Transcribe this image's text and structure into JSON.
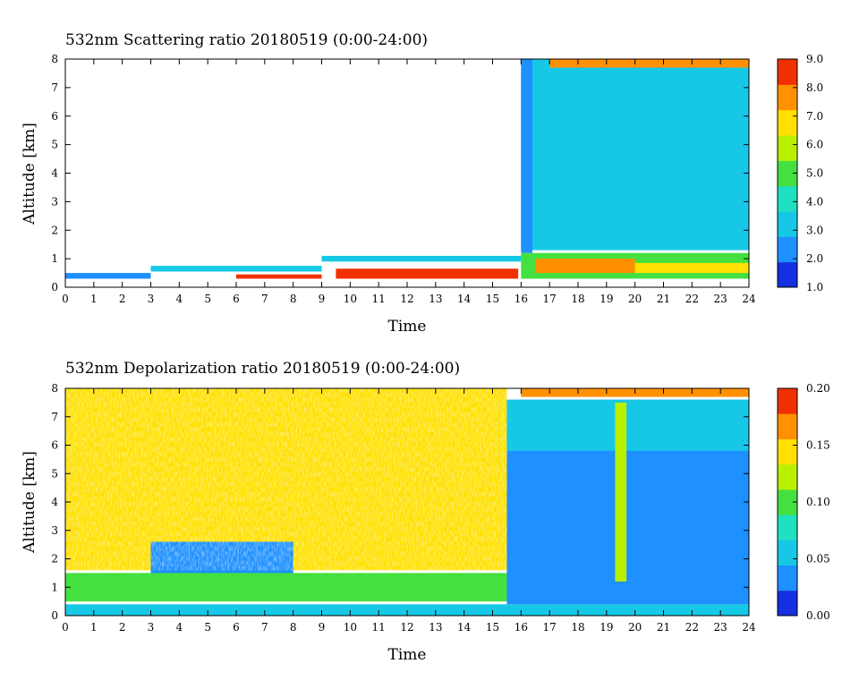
{
  "chart_data": [
    {
      "type": "heatmap",
      "title": "532nm Scattering ratio  20180519 (0:00-24:00)",
      "xlabel": "Time",
      "ylabel": "Altitude [km]",
      "xlim": [
        0,
        24
      ],
      "ylim": [
        0,
        8
      ],
      "xticks": [
        "0",
        "1",
        "2",
        "3",
        "4",
        "5",
        "6",
        "7",
        "8",
        "9",
        "10",
        "11",
        "12",
        "13",
        "14",
        "15",
        "16",
        "17",
        "18",
        "19",
        "20",
        "21",
        "22",
        "23",
        "24"
      ],
      "yticks": [
        "0",
        "1",
        "2",
        "3",
        "4",
        "5",
        "6",
        "7",
        "8"
      ],
      "colorbar": {
        "range": [
          1.0,
          9.0
        ],
        "ticks": [
          "1.0",
          "2.0",
          "3.0",
          "4.0",
          "5.0",
          "6.0",
          "7.0",
          "8.0",
          "9.0"
        ],
        "colors": [
          "#1530e0",
          "#1e90ff",
          "#17c8e6",
          "#1fe0c0",
          "#44e040",
          "#b8f000",
          "#ffe000",
          "#ff9000",
          "#f03000"
        ]
      },
      "regions": [
        {
          "x0": 0,
          "x1": 24,
          "y0": 0,
          "y1": 8,
          "value": 0,
          "note_blank": true
        },
        {
          "x0": 0,
          "x1": 3,
          "y0": 0.3,
          "y1": 0.5,
          "value": 2.2
        },
        {
          "x0": 3,
          "x1": 9,
          "y0": 0.55,
          "y1": 0.75,
          "value": 2.6
        },
        {
          "x0": 9,
          "x1": 16,
          "y0": 0.9,
          "y1": 1.1,
          "value": 2.6
        },
        {
          "x0": 6,
          "x1": 9,
          "y0": 0.3,
          "y1": 0.45,
          "value": 8.6
        },
        {
          "x0": 9.5,
          "x1": 15.9,
          "y0": 0.3,
          "y1": 0.65,
          "value": 8.7
        },
        {
          "x0": 16,
          "x1": 24,
          "y0": 1.3,
          "y1": 8,
          "value": 2.6
        },
        {
          "x0": 16,
          "x1": 16.4,
          "y0": 1.2,
          "y1": 8,
          "value": 1.5
        },
        {
          "x0": 16,
          "x1": 24,
          "y0": 0.3,
          "y1": 1.2,
          "value": 4.6
        },
        {
          "x0": 16.5,
          "x1": 20,
          "y0": 0.5,
          "y1": 1.0,
          "value": 8.4
        },
        {
          "x0": 20,
          "x1": 24,
          "y0": 0.5,
          "y1": 0.85,
          "value": 6.8
        },
        {
          "x0": 17,
          "x1": 24,
          "y0": 7.7,
          "y1": 8,
          "value": 8.4
        }
      ]
    },
    {
      "type": "heatmap",
      "title": "532nm Depolarization ratio  20180519 (0:00-24:00)",
      "xlabel": "Time",
      "ylabel": "Altitude [km]",
      "xlim": [
        0,
        24
      ],
      "ylim": [
        0,
        8
      ],
      "xticks": [
        "0",
        "1",
        "2",
        "3",
        "4",
        "5",
        "6",
        "7",
        "8",
        "9",
        "10",
        "11",
        "12",
        "13",
        "14",
        "15",
        "16",
        "17",
        "18",
        "19",
        "20",
        "21",
        "22",
        "23",
        "24"
      ],
      "yticks": [
        "0",
        "1",
        "2",
        "3",
        "4",
        "5",
        "6",
        "7",
        "8"
      ],
      "colorbar": {
        "range": [
          0.0,
          0.2
        ],
        "ticks": [
          "0.00",
          "0.05",
          "0.10",
          "0.15",
          "0.20"
        ],
        "colors": [
          "#1530e0",
          "#1e90ff",
          "#17c8e6",
          "#1fe0c0",
          "#44e040",
          "#b8f000",
          "#ffe000",
          "#ff9000",
          "#f03000"
        ]
      },
      "regions": [
        {
          "x0": 0,
          "x1": 15.5,
          "y0": 1.6,
          "y1": 8,
          "value": 0.16
        },
        {
          "x0": 3,
          "x1": 8,
          "y0": 1.4,
          "y1": 2.6,
          "value": 0.03
        },
        {
          "x0": 0,
          "x1": 16,
          "y0": 0.5,
          "y1": 1.5,
          "value": 0.095
        },
        {
          "x0": 0,
          "x1": 24,
          "y0": 0,
          "y1": 0.4,
          "value": 0.05
        },
        {
          "x0": 15.5,
          "x1": 24,
          "y0": 0.4,
          "y1": 7.6,
          "value": 0.03
        },
        {
          "x0": 15.5,
          "x1": 24,
          "y0": 5.8,
          "y1": 7.6,
          "value": 0.06
        },
        {
          "x0": 16,
          "x1": 24,
          "y0": 7.7,
          "y1": 8,
          "value": 0.17
        },
        {
          "x0": 19.3,
          "x1": 19.7,
          "y0": 1.2,
          "y1": 7.5,
          "value": 0.12
        }
      ]
    }
  ]
}
